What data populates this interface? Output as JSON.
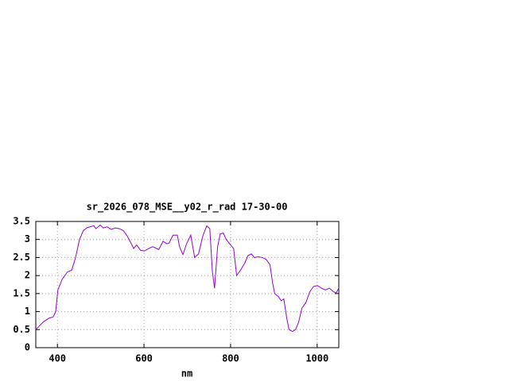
{
  "chart_data": {
    "type": "line",
    "title": "sr_2026_078_MSE__y02_r_rad 17-30-00",
    "x_label": "nm",
    "x": [
      350,
      368,
      381,
      390,
      396,
      401,
      411,
      423,
      433,
      442,
      451,
      460,
      469,
      484,
      489,
      499,
      506,
      515,
      524,
      534,
      543,
      552,
      561,
      570,
      576,
      583,
      592,
      601,
      611,
      620,
      629,
      634,
      644,
      653,
      658,
      667,
      677,
      682,
      690,
      699,
      708,
      717,
      726,
      736,
      745,
      752,
      758,
      763,
      770,
      776,
      783,
      790,
      800,
      807,
      814,
      823,
      833,
      840,
      848,
      855,
      864,
      873,
      882,
      891,
      897,
      902,
      910,
      917,
      923,
      930,
      935,
      943,
      950,
      957,
      965,
      974,
      983,
      992,
      1001,
      1010,
      1019,
      1028,
      1038,
      1044,
      1050
    ],
    "series": [
      {
        "color": "#9400d3",
        "values": [
          0.5,
          0.72,
          0.82,
          0.85,
          1.0,
          1.6,
          1.9,
          2.1,
          2.15,
          2.5,
          3.0,
          3.25,
          3.33,
          3.38,
          3.3,
          3.4,
          3.32,
          3.35,
          3.28,
          3.32,
          3.3,
          3.25,
          3.1,
          2.9,
          2.75,
          2.85,
          2.7,
          2.68,
          2.75,
          2.8,
          2.75,
          2.72,
          2.95,
          2.88,
          2.9,
          3.12,
          3.12,
          2.8,
          2.58,
          2.9,
          3.12,
          2.5,
          2.6,
          3.1,
          3.38,
          3.3,
          2.1,
          1.65,
          2.8,
          3.15,
          3.18,
          3.0,
          2.85,
          2.75,
          2.0,
          2.15,
          2.35,
          2.55,
          2.6,
          2.5,
          2.52,
          2.5,
          2.45,
          2.3,
          1.8,
          1.5,
          1.42,
          1.3,
          1.35,
          0.8,
          0.5,
          0.45,
          0.5,
          0.7,
          1.1,
          1.25,
          1.55,
          1.7,
          1.72,
          1.65,
          1.6,
          1.65,
          1.55,
          1.52,
          1.65
        ]
      }
    ],
    "xlim": [
      350,
      1050
    ],
    "xticks": [
      400,
      600,
      800,
      1000
    ],
    "ylim": [
      0,
      3.5
    ],
    "yticks": [
      0,
      0.5,
      1,
      1.5,
      2,
      2.5,
      3,
      3.5
    ],
    "grid": true
  }
}
